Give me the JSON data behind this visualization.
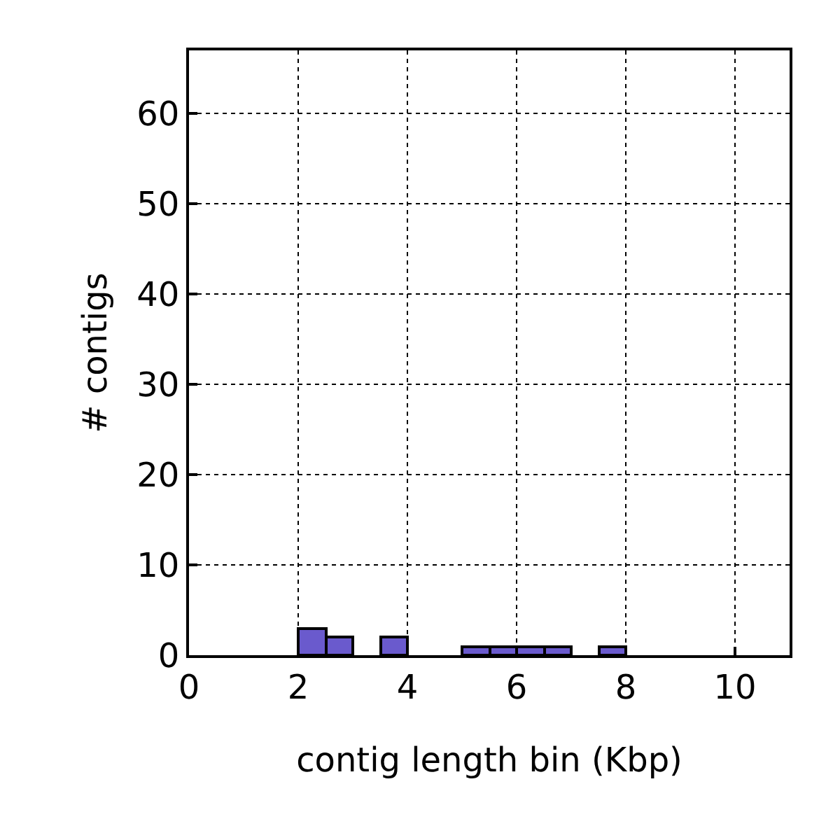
{
  "chart_data": {
    "type": "histogram",
    "xlabel": "contig length bin (Kbp)",
    "ylabel": "# contigs",
    "bins": [
      0,
      0.5,
      1,
      1.5,
      2,
      2.5,
      3,
      3.5,
      4,
      4.5,
      5,
      5.5,
      6,
      6.5,
      7,
      7.5,
      8,
      8.5,
      9,
      9.5,
      10,
      10.5,
      11
    ],
    "values": [
      0,
      0,
      0,
      0,
      3,
      2,
      0,
      2,
      0,
      0,
      1,
      1,
      1,
      1,
      0,
      1,
      0,
      0,
      0,
      0,
      0,
      0
    ],
    "color": "#6a5acd",
    "xlim": [
      0,
      11
    ],
    "xticks": [
      0,
      2,
      4,
      6,
      8,
      10
    ],
    "ylim": [
      0,
      67
    ],
    "yticks": [
      0,
      10,
      20,
      30,
      40,
      50,
      60
    ],
    "grid": true,
    "legend": false
  }
}
